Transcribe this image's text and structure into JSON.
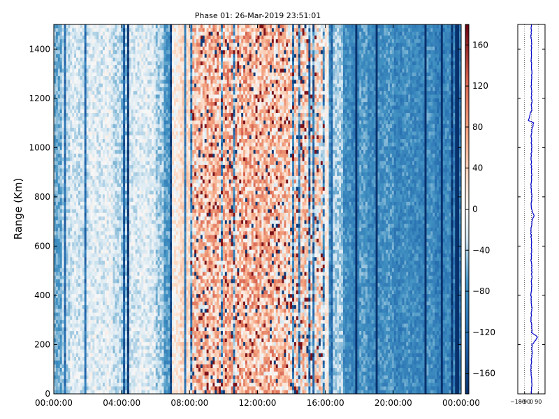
{
  "chart_data": [
    {
      "type": "heatmap",
      "title": "Phase 01: 26-Mar-2019 23:51:01",
      "xlabel": "",
      "ylabel": "Range (Km)",
      "x_ticks": [
        "00:00:00",
        "04:00:00",
        "08:00:00",
        "12:00:00",
        "16:00:00",
        "20:00:00",
        "00:00:00"
      ],
      "y_ticks": [
        0,
        200,
        400,
        600,
        800,
        1000,
        1200,
        1400
      ],
      "ylim": [
        0,
        1500
      ],
      "xlim_hours": [
        0,
        24
      ],
      "colormap": "RdBu_r",
      "colorbar": {
        "range": [
          -180,
          180
        ],
        "ticks": [
          -160,
          -120,
          -80,
          -40,
          0,
          40,
          80,
          120,
          160
        ],
        "low_color": "#08306b",
        "mid_color": "#f7f7f7",
        "high_color": "#67000d"
      },
      "column_bands": {
        "description_note": "",
        "hours": [
          0.0,
          0.5,
          1.0,
          1.5,
          2.0,
          2.5,
          3.0,
          3.5,
          4.0,
          4.5,
          5.0,
          5.5,
          6.0,
          6.5,
          7.0,
          7.5,
          8.0,
          8.5,
          9.0,
          9.5,
          10.0,
          10.5,
          11.0,
          11.5,
          12.0,
          12.5,
          13.0,
          13.5,
          14.0,
          14.5,
          15.0,
          15.5,
          16.0,
          16.5,
          17.0,
          17.5,
          18.0,
          18.5,
          19.0,
          19.5,
          20.0,
          20.5,
          21.0,
          21.5,
          22.0,
          22.5,
          23.0,
          23.5
        ],
        "mean_phase": [
          -60,
          -30,
          -20,
          -25,
          -15,
          -20,
          -15,
          -30,
          -45,
          -20,
          -15,
          -20,
          -40,
          -70,
          10,
          30,
          40,
          45,
          50,
          55,
          60,
          55,
          60,
          55,
          50,
          50,
          45,
          40,
          35,
          30,
          25,
          20,
          10,
          -40,
          -80,
          -90,
          -70,
          -85,
          -80,
          -75,
          -90,
          -80,
          -85,
          -90,
          -80,
          -95,
          -85,
          -90
        ]
      }
    },
    {
      "type": "line",
      "title": "",
      "xlabel": "",
      "ylabel": "",
      "x_ticks": [
        -180,
        -90,
        0,
        90
      ],
      "x_tick_labels": [
        "−180",
        "−90",
        "0",
        "90"
      ],
      "xlim": [
        -180,
        180
      ],
      "ylim": [
        0,
        1500
      ],
      "grid": "vertical dotted",
      "series": [
        {
          "color": "#0000cc",
          "range_km": [
            0,
            50,
            100,
            150,
            200,
            230,
            250,
            300,
            350,
            400,
            450,
            500,
            550,
            600,
            650,
            700,
            725,
            750,
            800,
            850,
            900,
            950,
            1000,
            1050,
            1100,
            1110,
            1150,
            1200,
            1250,
            1300,
            1350,
            1400,
            1450,
            1500
          ],
          "phase": [
            0,
            5,
            -5,
            3,
            10,
            80,
            5,
            -3,
            4,
            -6,
            2,
            6,
            -4,
            3,
            -5,
            2,
            35,
            -3,
            5,
            -2,
            4,
            -5,
            3,
            -4,
            30,
            -40,
            2,
            4,
            -3,
            5,
            -2,
            3,
            -4,
            0
          ]
        }
      ]
    }
  ]
}
